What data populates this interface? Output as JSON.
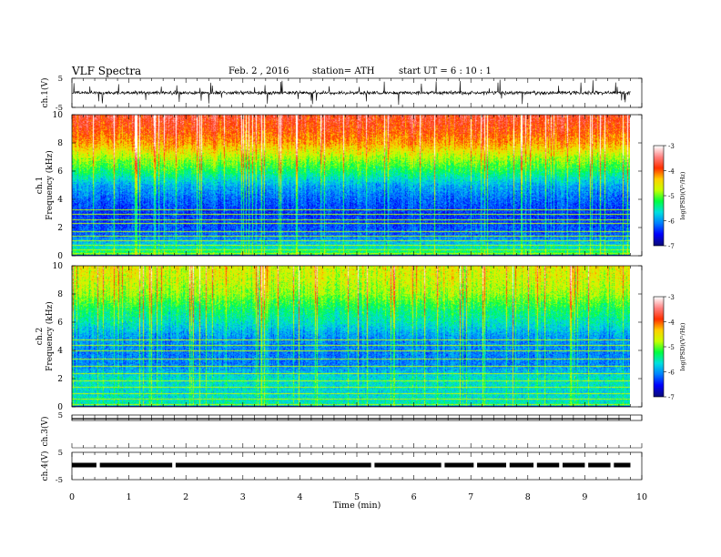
{
  "header": {
    "title": "VLF  Spectra",
    "date": "Feb. 2  , 2016",
    "station": "station= ATH",
    "start": "start  UT  =    6  : 10 : 1"
  },
  "colors": {
    "colormap": [
      "#0a0a7a",
      "#0000ff",
      "#0080ff",
      "#00e0e0",
      "#00ff40",
      "#c8ff00",
      "#ffd000",
      "#ff3000",
      "#ff8080",
      "#ffffff"
    ],
    "trace": "#000000"
  },
  "chart_data": [
    {
      "type": "line",
      "panel": "ch1",
      "ylabel": "ch.1(V)",
      "ylim": [
        -5,
        5
      ],
      "yticks": [
        "5",
        "-5"
      ],
      "x_range": [
        0,
        9.8
      ],
      "baseline": 0,
      "description_values": {
        "mean": 0,
        "noise_amplitude": 1,
        "max_spike": 4.5
      }
    },
    {
      "type": "heatmap",
      "panel": "ch1-spectrogram",
      "ylabel_line1": "ch.1",
      "ylabel_line2": "Frequency  (kHz)",
      "ylim": [
        0,
        10
      ],
      "yticks": [
        "0",
        "2",
        "4",
        "6",
        "8",
        "10"
      ],
      "x_range": [
        0,
        9.8
      ],
      "colorbar": {
        "label": "log(PSD)(V²/Hz)",
        "range": [
          -7,
          -3
        ],
        "ticks": [
          "-3",
          "-4",
          "-5",
          "-6",
          "-7"
        ]
      },
      "psd_profile_khz": [
        [
          0,
          -5.0
        ],
        [
          0.5,
          -5.5
        ],
        [
          1.5,
          -6.2
        ],
        [
          3,
          -6.4
        ],
        [
          4,
          -6.2
        ],
        [
          5,
          -5.9
        ],
        [
          6,
          -5.3
        ],
        [
          7,
          -4.8
        ],
        [
          8,
          -4.2
        ],
        [
          9,
          -3.9
        ],
        [
          10,
          -3.7
        ]
      ],
      "tone_lines_khz": [
        0.2,
        0.45,
        0.8,
        1.1,
        1.4,
        1.75,
        2.3,
        2.6,
        3.0,
        3.3
      ]
    },
    {
      "type": "heatmap",
      "panel": "ch2-spectrogram",
      "ylabel_line1": "ch.2",
      "ylabel_line2": "Frequency  (kHz)",
      "ylim": [
        0,
        10
      ],
      "yticks": [
        "0",
        "2",
        "4",
        "6",
        "8",
        "10"
      ],
      "x_range": [
        0,
        9.8
      ],
      "colorbar": {
        "label": "log(PSD)(V²/Hz)",
        "range": [
          -7,
          -3
        ],
        "ticks": [
          "-3",
          "-4",
          "-5",
          "-6",
          "-7"
        ]
      },
      "psd_profile_khz": [
        [
          0,
          -5.5
        ],
        [
          1,
          -5.7
        ],
        [
          2,
          -5.6
        ],
        [
          3,
          -6.1
        ],
        [
          4,
          -6.1
        ],
        [
          5,
          -6.0
        ],
        [
          6,
          -5.6
        ],
        [
          7,
          -5.3
        ],
        [
          8,
          -4.9
        ],
        [
          9,
          -4.7
        ],
        [
          10,
          -4.6
        ]
      ],
      "tone_lines_khz": [
        0.2,
        0.6,
        1.0,
        1.4,
        1.9,
        2.4,
        2.9,
        3.4,
        4.0,
        4.4,
        4.8
      ]
    },
    {
      "type": "line",
      "panel": "ch3",
      "ylabel": "ch.3(V)",
      "ylim": [
        -5,
        5
      ],
      "yticks": [
        "5"
      ],
      "x_range": [
        0,
        9.8
      ],
      "baseline": 4.6
    },
    {
      "type": "line",
      "panel": "ch4",
      "ylabel": "ch.4(V)",
      "ylim": [
        -5,
        5
      ],
      "yticks": [
        "5",
        "-5"
      ],
      "x_range": [
        0,
        9.8
      ],
      "baseline": 0,
      "gaps_min": [
        0.43,
        1.76,
        5.25,
        6.48,
        7.05,
        7.62,
        8.1,
        8.55,
        9.0,
        9.45
      ]
    }
  ],
  "xaxis": {
    "label": "Time  (min)",
    "range": [
      0,
      10
    ],
    "ticks": [
      "0",
      "1",
      "2",
      "3",
      "4",
      "5",
      "6",
      "7",
      "8",
      "9",
      "10"
    ]
  }
}
